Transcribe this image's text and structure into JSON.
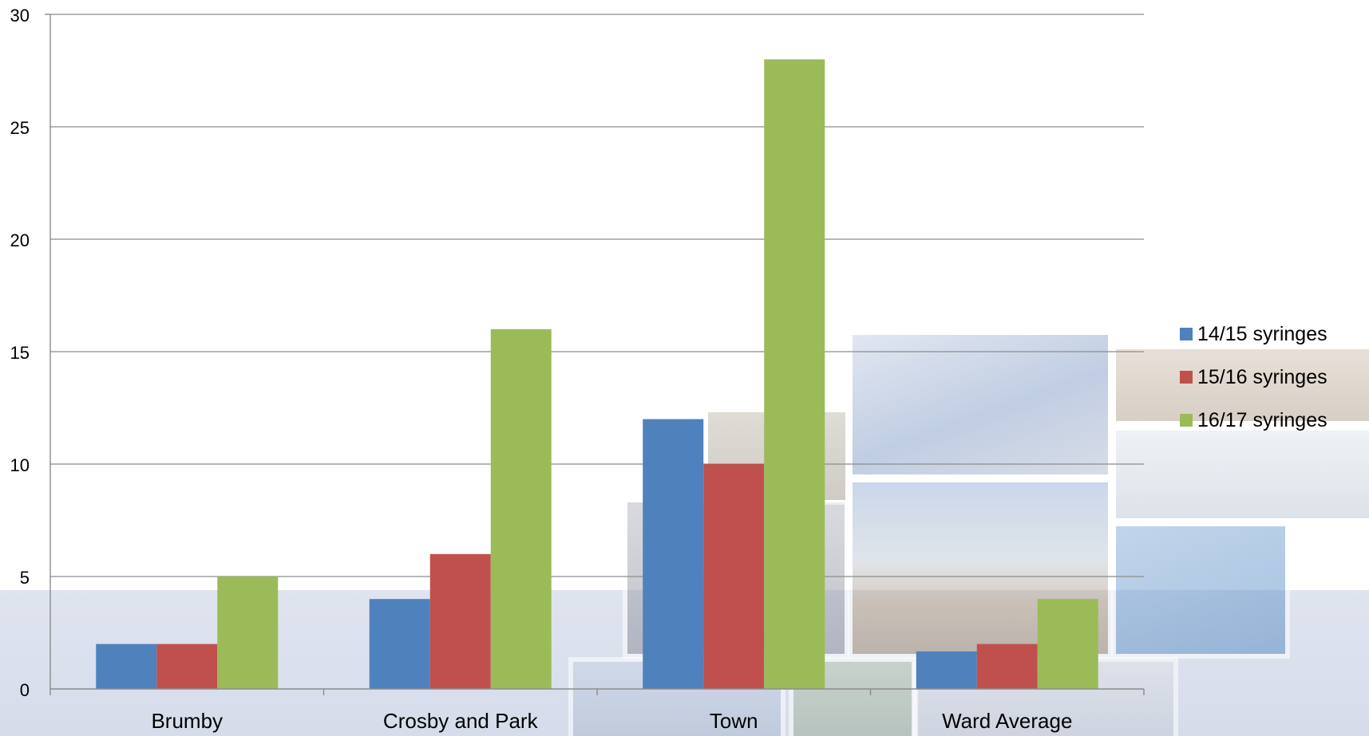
{
  "chart_data": {
    "type": "bar",
    "title": "",
    "xlabel": "",
    "ylabel": "",
    "categories": [
      "Brumby",
      "Crosby and Park",
      "Town",
      "Ward Average"
    ],
    "series": [
      {
        "name": "14/15 syringes",
        "color": "#4f81bd",
        "values": [
          2,
          4,
          12,
          1.67
        ]
      },
      {
        "name": "15/16 syringes",
        "color": "#c0504d",
        "values": [
          2,
          6,
          10,
          2
        ]
      },
      {
        "name": "16/17 syringes",
        "color": "#9bbb59",
        "values": [
          5,
          16,
          28,
          4
        ]
      }
    ],
    "ylim": [
      0,
      30
    ],
    "yticks": [
      0,
      5,
      10,
      15,
      20,
      25,
      30
    ],
    "grid": true,
    "legend_position": "right"
  }
}
